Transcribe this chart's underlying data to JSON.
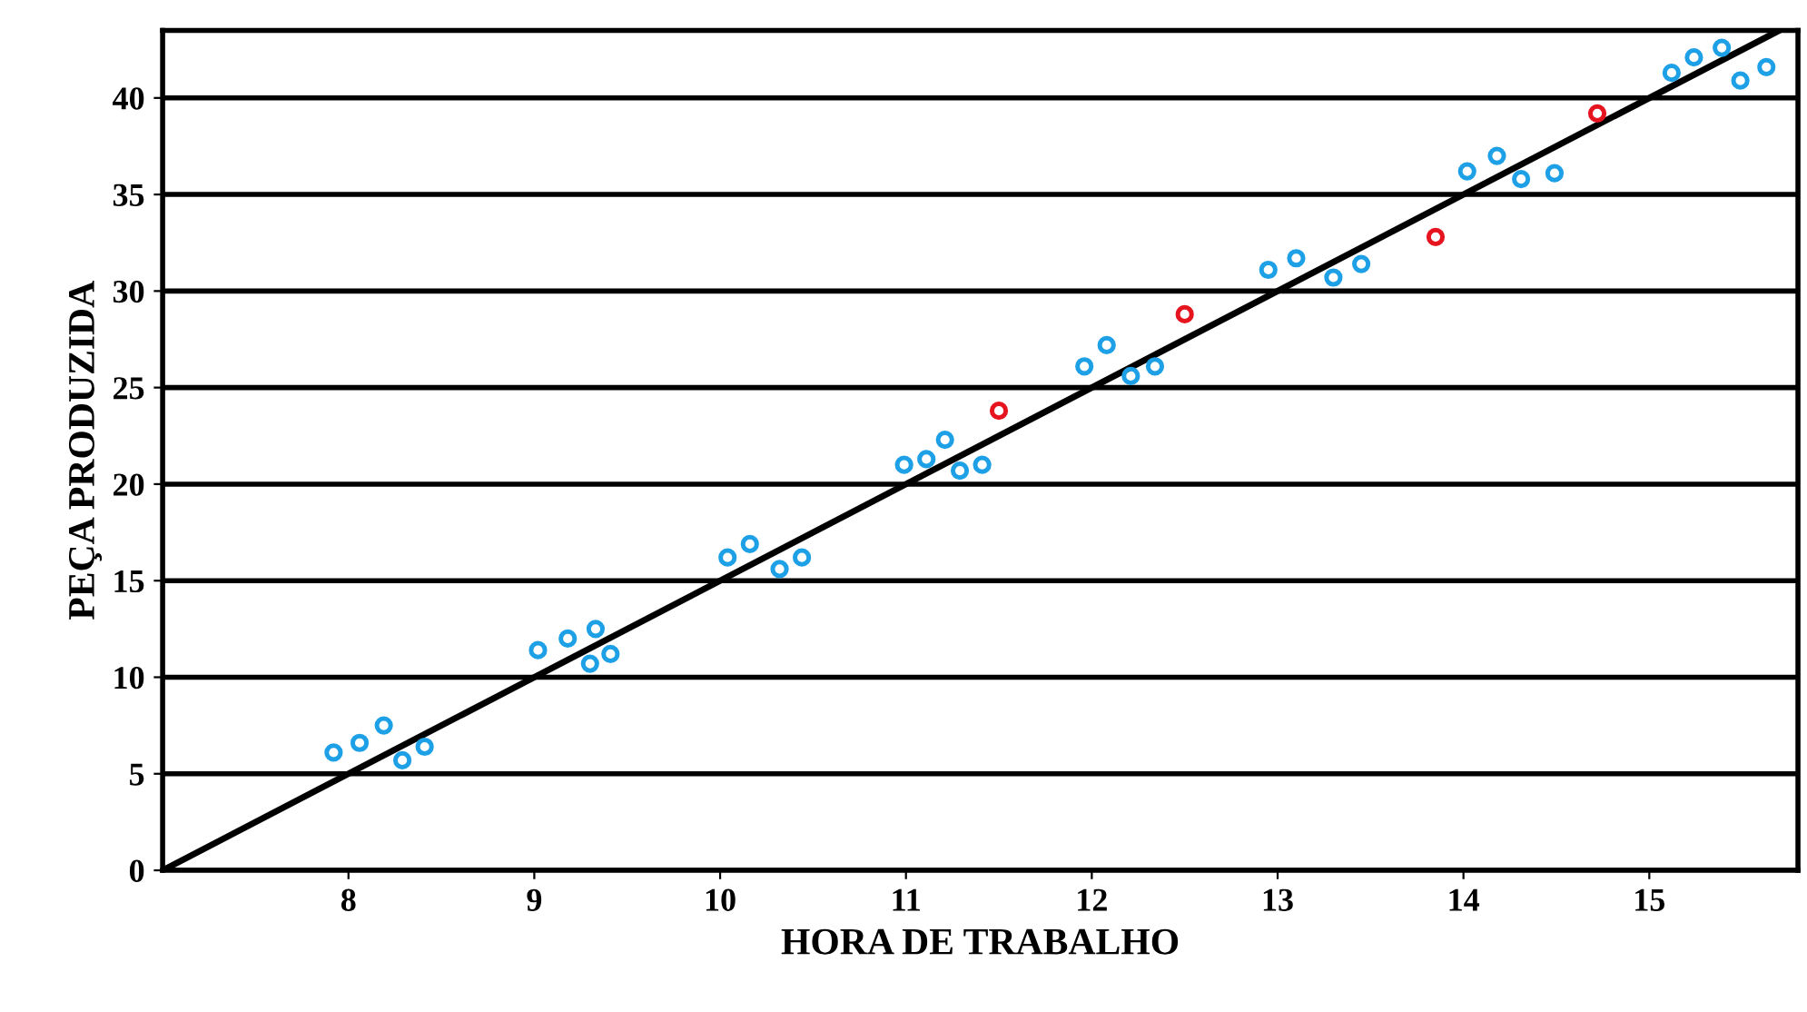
{
  "chart_data": {
    "type": "scatter",
    "xlabel": "HORA DE TRABALHO",
    "ylabel": "PEÇA PRODUZIDA",
    "xlim": [
      7,
      15.8
    ],
    "xticks": [
      8,
      9,
      10,
      11,
      12,
      13,
      14,
      15
    ],
    "ylim": [
      0,
      43.5
    ],
    "yticks": [
      0,
      5,
      10,
      15,
      20,
      25,
      30,
      35,
      40
    ],
    "grid": "y",
    "marker": "circle",
    "series": [
      {
        "color": "#1ea0e6",
        "x": [
          7.92,
          8.06,
          8.19,
          8.29,
          8.41,
          9.02,
          9.18,
          9.33,
          9.3,
          9.41,
          10.04,
          10.16,
          10.32,
          10.44,
          10.99,
          11.11,
          11.21,
          11.29,
          11.41,
          11.96,
          12.08,
          12.21,
          12.34,
          12.95,
          13.1,
          13.3,
          13.45,
          14.02,
          14.18,
          14.31,
          14.49,
          15.12,
          15.24,
          15.39,
          15.49,
          15.63
        ],
        "values": [
          6.1,
          6.6,
          7.5,
          5.7,
          6.4,
          11.4,
          12.0,
          12.5,
          10.7,
          11.2,
          16.2,
          16.9,
          15.6,
          16.2,
          21.0,
          21.3,
          22.3,
          20.7,
          21.0,
          26.1,
          27.2,
          25.6,
          26.1,
          31.1,
          31.7,
          30.7,
          31.4,
          36.2,
          37.0,
          35.8,
          36.1,
          41.3,
          42.1,
          42.6,
          40.9,
          41.6
        ]
      },
      {
        "color": "#e6141e",
        "x": [
          11.5,
          12.5,
          13.85,
          14.72
        ],
        "values": [
          23.8,
          28.8,
          32.8,
          39.2
        ]
      },
      {
        "type": "line",
        "color": "#000000",
        "marker": "none",
        "x": [
          7,
          15.7
        ],
        "values": [
          0,
          43.5
        ]
      }
    ]
  }
}
